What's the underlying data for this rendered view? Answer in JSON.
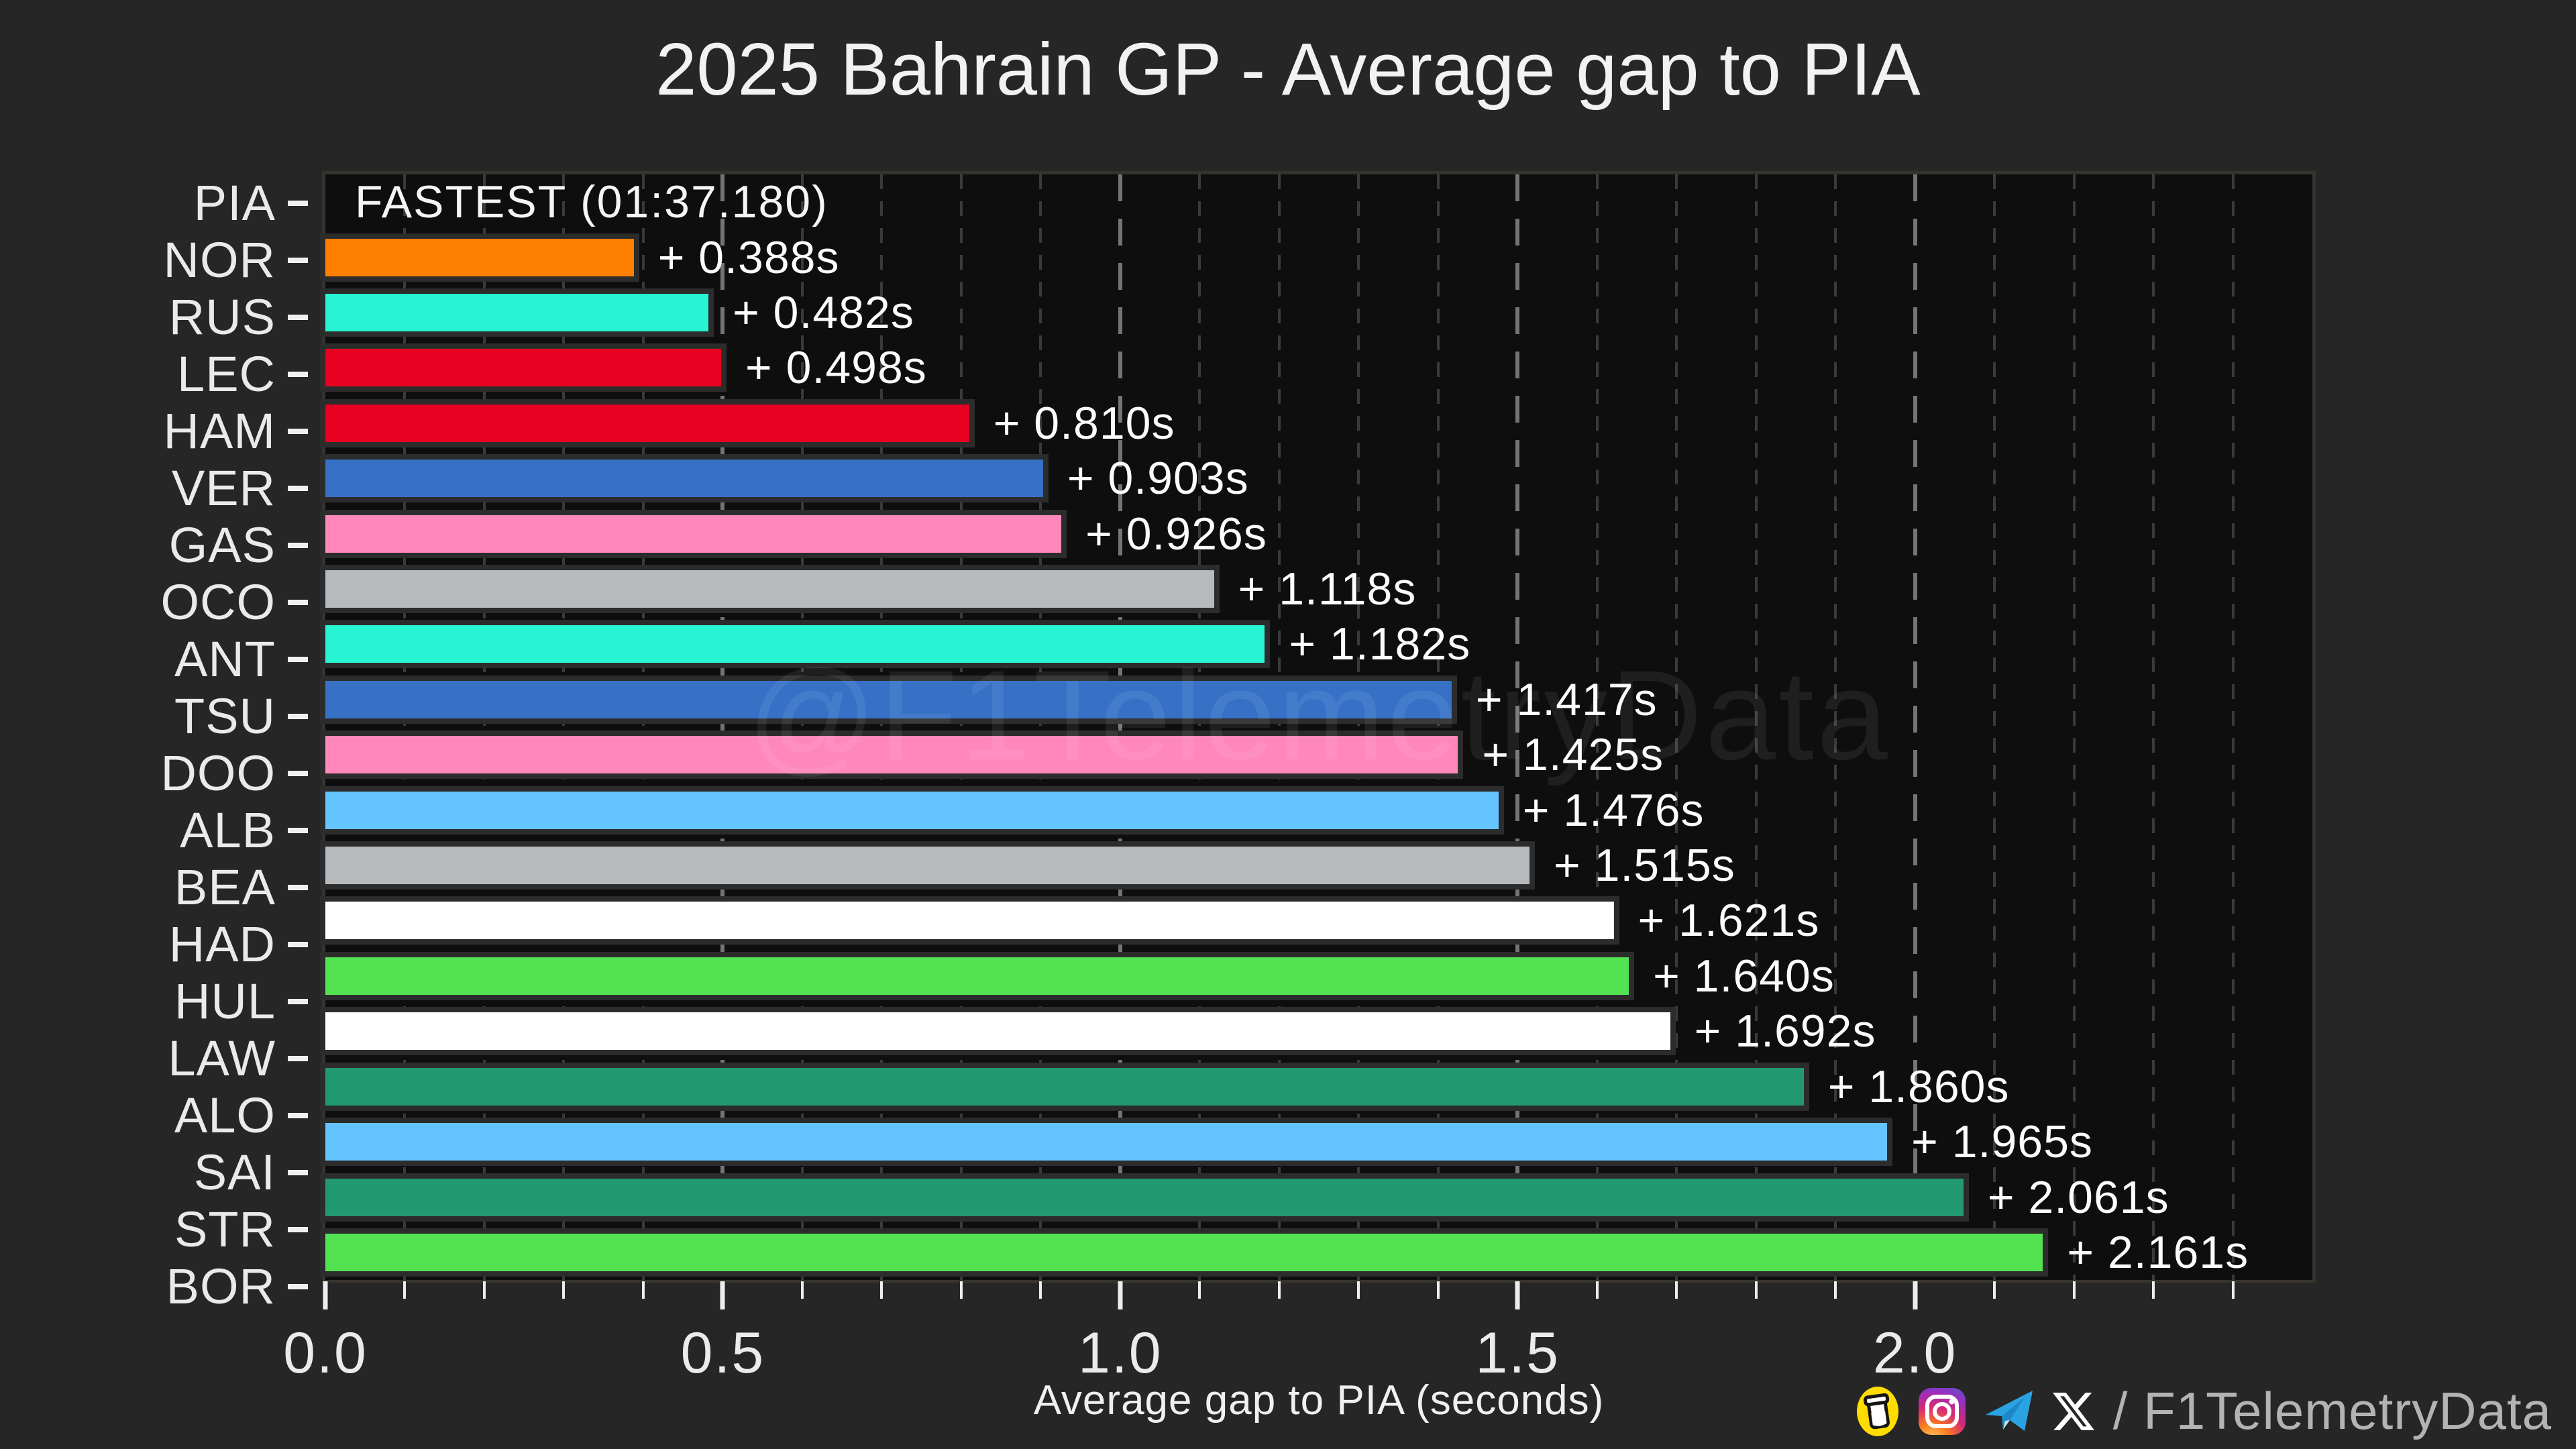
{
  "title": "2025 Bahrain GP - Average gap to PIA",
  "watermark": "@F1TelemetryData",
  "x_axis": {
    "label": "Average gap to PIA (seconds)",
    "max": 2.5,
    "minor_step": 0.1,
    "major_ticks": [
      {
        "value": 0.0,
        "label": "0.0"
      },
      {
        "value": 0.5,
        "label": "0.5"
      },
      {
        "value": 1.0,
        "label": "1.0"
      },
      {
        "value": 1.5,
        "label": "1.5"
      },
      {
        "value": 2.0,
        "label": "2.0"
      }
    ]
  },
  "drivers": [
    {
      "code": "PIA",
      "gap_seconds": 0.0,
      "bar": false,
      "annotation": "FASTEST (01:37.180)",
      "color": null
    },
    {
      "code": "NOR",
      "gap_seconds": 0.388,
      "bar": true,
      "annotation": "+ 0.388s",
      "color": "#FF8000"
    },
    {
      "code": "RUS",
      "gap_seconds": 0.482,
      "bar": true,
      "annotation": "+ 0.482s",
      "color": "#27F4D2"
    },
    {
      "code": "LEC",
      "gap_seconds": 0.498,
      "bar": true,
      "annotation": "+ 0.498s",
      "color": "#E80020"
    },
    {
      "code": "HAM",
      "gap_seconds": 0.81,
      "bar": true,
      "annotation": "+ 0.810s",
      "color": "#E80020"
    },
    {
      "code": "VER",
      "gap_seconds": 0.903,
      "bar": true,
      "annotation": "+ 0.903s",
      "color": "#3671C6"
    },
    {
      "code": "GAS",
      "gap_seconds": 0.926,
      "bar": true,
      "annotation": "+ 0.926s",
      "color": "#FF87BC"
    },
    {
      "code": "OCO",
      "gap_seconds": 1.118,
      "bar": true,
      "annotation": "+ 1.118s",
      "color": "#B6BABD"
    },
    {
      "code": "ANT",
      "gap_seconds": 1.182,
      "bar": true,
      "annotation": "+ 1.182s",
      "color": "#27F4D2"
    },
    {
      "code": "TSU",
      "gap_seconds": 1.417,
      "bar": true,
      "annotation": "+ 1.417s",
      "color": "#3671C6"
    },
    {
      "code": "DOO",
      "gap_seconds": 1.425,
      "bar": true,
      "annotation": "+ 1.425s",
      "color": "#FF87BC"
    },
    {
      "code": "ALB",
      "gap_seconds": 1.476,
      "bar": true,
      "annotation": "+ 1.476s",
      "color": "#64C4FF"
    },
    {
      "code": "BEA",
      "gap_seconds": 1.515,
      "bar": true,
      "annotation": "+ 1.515s",
      "color": "#B6BABD"
    },
    {
      "code": "HAD",
      "gap_seconds": 1.621,
      "bar": true,
      "annotation": "+ 1.621s",
      "color": "#FFFFFF"
    },
    {
      "code": "HUL",
      "gap_seconds": 1.64,
      "bar": true,
      "annotation": "+ 1.640s",
      "color": "#52E252"
    },
    {
      "code": "LAW",
      "gap_seconds": 1.692,
      "bar": true,
      "annotation": "+ 1.692s",
      "color": "#FFFFFF"
    },
    {
      "code": "ALO",
      "gap_seconds": 1.86,
      "bar": true,
      "annotation": "+ 1.860s",
      "color": "#229971"
    },
    {
      "code": "SAI",
      "gap_seconds": 1.965,
      "bar": true,
      "annotation": "+ 1.965s",
      "color": "#64C4FF"
    },
    {
      "code": "STR",
      "gap_seconds": 2.061,
      "bar": true,
      "annotation": "+ 2.061s",
      "color": "#229971"
    },
    {
      "code": "BOR",
      "gap_seconds": 2.161,
      "bar": true,
      "annotation": "+ 2.161s",
      "color": "#52E252"
    }
  ],
  "chart_data": {
    "type": "bar",
    "orientation": "horizontal",
    "title": "2025 Bahrain GP - Average gap to PIA",
    "xlabel": "Average gap to PIA (seconds)",
    "xlim": [
      0,
      2.5
    ],
    "grid": "dashed vertical; minor every 0.1, major every 0.5",
    "legend": null,
    "categories": [
      "PIA",
      "NOR",
      "RUS",
      "LEC",
      "HAM",
      "VER",
      "GAS",
      "OCO",
      "ANT",
      "TSU",
      "DOO",
      "ALB",
      "BEA",
      "HAD",
      "HUL",
      "LAW",
      "ALO",
      "SAI",
      "STR",
      "BOR"
    ],
    "values": [
      0.0,
      0.388,
      0.482,
      0.498,
      0.81,
      0.903,
      0.926,
      1.118,
      1.182,
      1.417,
      1.425,
      1.476,
      1.515,
      1.621,
      1.64,
      1.692,
      1.86,
      1.965,
      2.061,
      2.161
    ],
    "bar_colors": [
      null,
      "#FF8000",
      "#27F4D2",
      "#E80020",
      "#E80020",
      "#3671C6",
      "#FF87BC",
      "#B6BABD",
      "#27F4D2",
      "#3671C6",
      "#FF87BC",
      "#64C4FF",
      "#B6BABD",
      "#FFFFFF",
      "#52E252",
      "#FFFFFF",
      "#229971",
      "#64C4FF",
      "#229971",
      "#52E252"
    ],
    "annotations": [
      "FASTEST (01:37.180)",
      "+ 0.388s",
      "+ 0.482s",
      "+ 0.498s",
      "+ 0.810s",
      "+ 0.903s",
      "+ 0.926s",
      "+ 1.118s",
      "+ 1.182s",
      "+ 1.417s",
      "+ 1.425s",
      "+ 1.476s",
      "+ 1.515s",
      "+ 1.621s",
      "+ 1.640s",
      "+ 1.692s",
      "+ 1.860s",
      "+ 1.965s",
      "+ 2.061s",
      "+ 2.161s"
    ],
    "fastest_reference_lap": "01:37.180"
  },
  "footer": {
    "icons": [
      "buymeacoffee-icon",
      "instagram-icon",
      "telegram-icon",
      "x-icon"
    ],
    "handle": "/ F1TelemetryData"
  },
  "colors": {
    "figure_bg": "#262626",
    "plot_bg": "#0E0E0E",
    "bar_edge": "#2C2C2C",
    "grid_major": "#747474",
    "grid_minor": "#3A3A3A",
    "text": "#F2F2F2",
    "footer_text": "#B3B3B3",
    "telegram_blue": "#2AA3E3",
    "bmc_yellow": "#FFDD00"
  }
}
